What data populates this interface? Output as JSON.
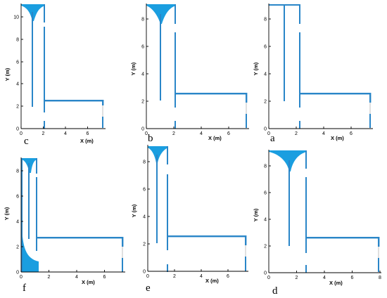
{
  "colors": {
    "fluid": "#1a9ee0",
    "wall": "#2a86c8",
    "axis": "#000000",
    "door": "#b0b0b0"
  },
  "panels": [
    {
      "label": "c",
      "xlabel": "X (m)",
      "ylabel": "Y (m)",
      "xticks": [
        "0",
        "2",
        "4",
        "6"
      ],
      "xtick_values": [
        0,
        2,
        4,
        6
      ],
      "yticks": [
        "0",
        "2",
        "4",
        "6",
        "8",
        "10"
      ],
      "ytick_values": [
        0,
        2,
        4,
        6,
        8,
        10
      ],
      "xmax": 7.5,
      "ymax": 11.2
    },
    {
      "label": "b",
      "xlabel": "X (m)",
      "ylabel": "Y (m)",
      "xticks": [
        "0",
        "2",
        "4",
        "6"
      ],
      "xtick_values": [
        0,
        2,
        4,
        6
      ],
      "yticks": [
        "0",
        "2",
        "4",
        "6",
        "8"
      ],
      "ytick_values": [
        0,
        2,
        4,
        6,
        8
      ],
      "xmax": 7.5,
      "ymax": 9.1
    },
    {
      "label": "a",
      "xlabel": "X (m)",
      "ylabel": "Y (m)",
      "xticks": [
        "0",
        "2",
        "4",
        "6"
      ],
      "xtick_values": [
        0,
        2,
        4,
        6
      ],
      "yticks": [
        "0",
        "2",
        "4",
        "6",
        "8"
      ],
      "ytick_values": [
        0,
        2,
        4,
        6,
        8
      ],
      "xmax": 7.5,
      "ymax": 9.1
    },
    {
      "label": "f",
      "xlabel": "X (m)",
      "ylabel": "Y (m)",
      "xticks": [
        "0",
        "2",
        "4",
        "6"
      ],
      "xtick_values": [
        0,
        2,
        4,
        6
      ],
      "yticks": [
        "0",
        "2",
        "4",
        "6",
        "8"
      ],
      "ytick_values": [
        0,
        2,
        4,
        6,
        8
      ],
      "xmax": 7.3,
      "ymax": 9.1
    },
    {
      "label": "e",
      "xlabel": "X (m)",
      "ylabel": "Y (m)",
      "xticks": [
        "0",
        "2",
        "4",
        "6"
      ],
      "xtick_values": [
        0,
        2,
        4,
        6
      ],
      "yticks": [
        "0",
        "2",
        "4",
        "6",
        "8"
      ],
      "ytick_values": [
        0,
        2,
        4,
        6,
        8
      ],
      "xmax": 7.5,
      "ymax": 9.1
    },
    {
      "label": "d",
      "xlabel": "X (m)",
      "ylabel": "Y (m)",
      "xticks": [
        "0",
        "2",
        "4",
        "6",
        "8"
      ],
      "xtick_values": [
        0,
        2,
        4,
        6,
        8
      ],
      "yticks": [
        "0",
        "2",
        "4",
        "6",
        "8"
      ],
      "ytick_values": [
        0,
        2,
        4,
        6,
        8
      ],
      "xmax": 8.0,
      "ymax": 9.1
    }
  ]
}
